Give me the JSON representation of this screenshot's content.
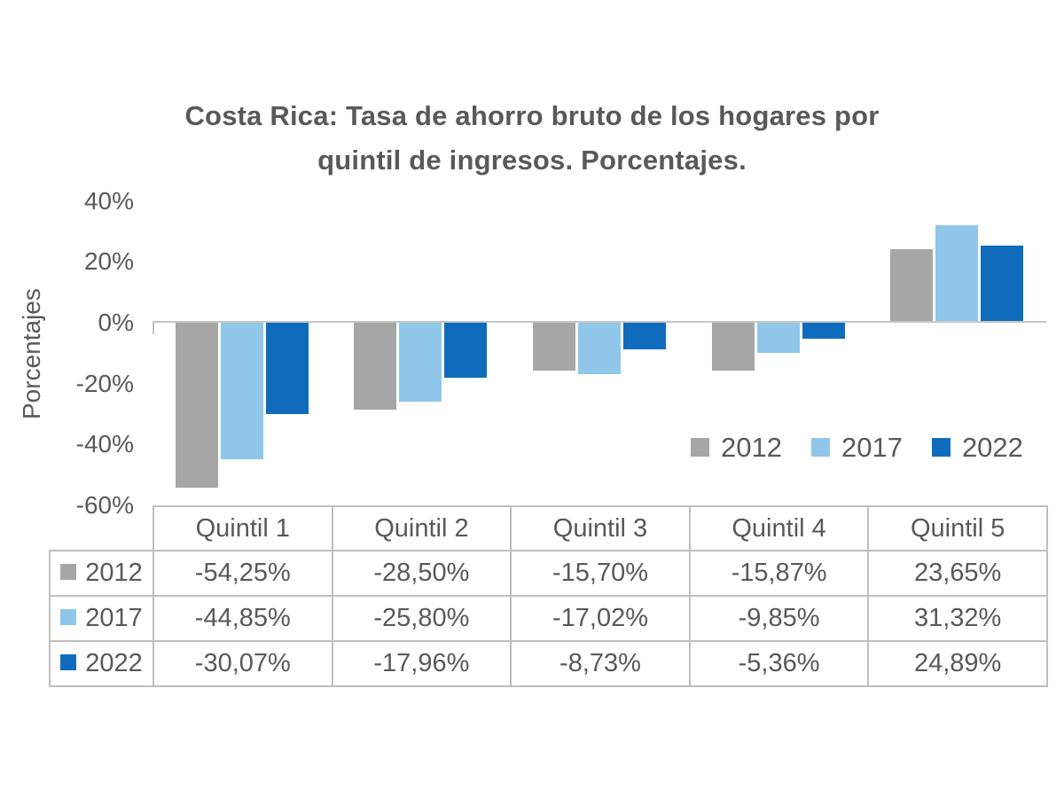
{
  "figure": {
    "title_lines": [
      "Costa Rica: Tasa de ahorro bruto de los hogares por",
      "quintil de ingresos. Porcentajes."
    ]
  },
  "colors": {
    "series_2012": "#A6A6A6",
    "series_2017": "#8FC6E9",
    "series_2022": "#0F6CBD",
    "text": "#595959",
    "axis_line": "#C6C6C6",
    "table_border": "#BFBFBF",
    "background": "#FFFFFF"
  },
  "chart_data": {
    "type": "bar",
    "title": "Costa Rica: Tasa de ahorro bruto de los hogares por quintil de ingresos. Porcentajes.",
    "xlabel": "",
    "ylabel": "Porcentajes",
    "categories": [
      "Quintil 1",
      "Quintil 2",
      "Quintil 3",
      "Quintil 4",
      "Quintil 5"
    ],
    "series": [
      {
        "name": "2012",
        "color": "#A6A6A6",
        "values": [
          -54.25,
          -28.5,
          -15.7,
          -15.87,
          23.65
        ]
      },
      {
        "name": "2017",
        "color": "#8FC6E9",
        "values": [
          -44.85,
          -25.8,
          -17.02,
          -9.85,
          31.32
        ]
      },
      {
        "name": "2022",
        "color": "#0F6CBD",
        "values": [
          -30.07,
          -17.96,
          -8.73,
          -5.36,
          24.89
        ]
      }
    ],
    "ylim": [
      -60,
      40
    ],
    "yticks": [
      {
        "value": 40,
        "label": "40%"
      },
      {
        "value": 20,
        "label": "20%"
      },
      {
        "value": 0,
        "label": "0%"
      },
      {
        "value": -20,
        "label": "-20%"
      },
      {
        "value": -40,
        "label": "-40%"
      },
      {
        "value": -60,
        "label": "-60%"
      }
    ],
    "grid": false,
    "legend_position": "inside-right"
  },
  "table": {
    "col_headers": [
      "Quintil 1",
      "Quintil 2",
      "Quintil 3",
      "Quintil 4",
      "Quintil 5"
    ],
    "rows": [
      {
        "label": "2012",
        "values": [
          "-54,25%",
          "-28,50%",
          "-15,70%",
          "-15,87%",
          "23,65%"
        ]
      },
      {
        "label": "2017",
        "values": [
          "-44,85%",
          "-25,80%",
          "-17,02%",
          "-9,85%",
          "31,32%"
        ]
      },
      {
        "label": "2022",
        "values": [
          "-30,07%",
          "-17,96%",
          "-8,73%",
          "-5,36%",
          "24,89%"
        ]
      }
    ]
  }
}
